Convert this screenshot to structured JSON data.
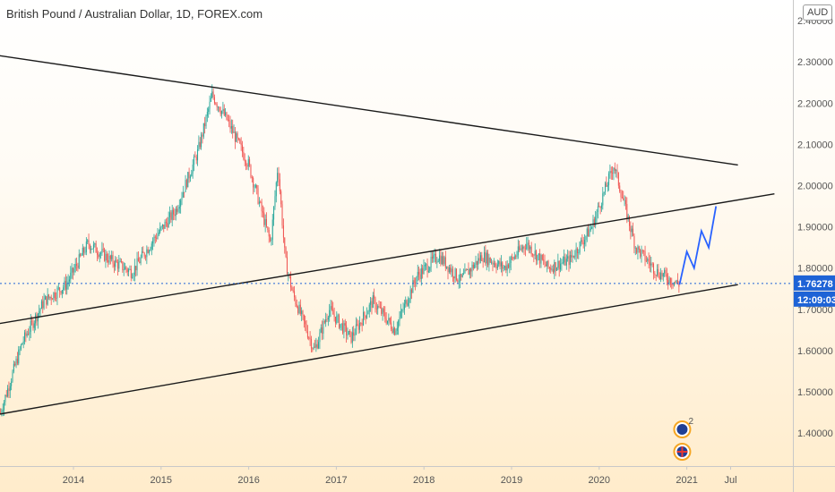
{
  "header": {
    "title": "British Pound / Australian Dollar, 1D, FOREX.com",
    "currency": "AUD"
  },
  "colors": {
    "up": "#26a69a",
    "down": "#ef5350",
    "trendline": "#1a1a1a",
    "projection": "#2962ff",
    "last_price": "#1e63d6"
  },
  "chart_data": {
    "type": "candlestick",
    "x_axis": {
      "ticks": [
        "2014",
        "2015",
        "2016",
        "2017",
        "2018",
        "2019",
        "2020",
        "2021",
        "Jul"
      ]
    },
    "y_axis": {
      "ticks": [
        "2.40000",
        "2.30000",
        "2.20000",
        "2.10000",
        "2.00000",
        "1.90000",
        "1.80000",
        "1.70000",
        "1.60000",
        "1.50000",
        "1.40000"
      ],
      "range": [
        1.32,
        2.45
      ]
    },
    "last_price": "1.76278",
    "countdown": "12:09:03",
    "price_path": [
      [
        "2013-03",
        1.45
      ],
      [
        "2013-06",
        1.62
      ],
      [
        "2013-09",
        1.72
      ],
      [
        "2013-12",
        1.76
      ],
      [
        "2014-03",
        1.86
      ],
      [
        "2014-06",
        1.82
      ],
      [
        "2014-09",
        1.79
      ],
      [
        "2014-12",
        1.87
      ],
      [
        "2015-03",
        1.94
      ],
      [
        "2015-06",
        2.08
      ],
      [
        "2015-08",
        2.22
      ],
      [
        "2015-10",
        2.16
      ],
      [
        "2016-01",
        2.05
      ],
      [
        "2016-04",
        1.86
      ],
      [
        "2016-05",
        2.05
      ],
      [
        "2016-06",
        1.82
      ],
      [
        "2016-07",
        1.74
      ],
      [
        "2016-10",
        1.6
      ],
      [
        "2016-12",
        1.7
      ],
      [
        "2017-03",
        1.63
      ],
      [
        "2017-06",
        1.72
      ],
      [
        "2017-09",
        1.65
      ],
      [
        "2017-12",
        1.78
      ],
      [
        "2018-03",
        1.83
      ],
      [
        "2018-06",
        1.77
      ],
      [
        "2018-09",
        1.83
      ],
      [
        "2018-12",
        1.8
      ],
      [
        "2019-03",
        1.86
      ],
      [
        "2019-06",
        1.8
      ],
      [
        "2019-09",
        1.82
      ],
      [
        "2019-12",
        1.9
      ],
      [
        "2020-03",
        2.05
      ],
      [
        "2020-06",
        1.85
      ],
      [
        "2020-09",
        1.79
      ],
      [
        "2020-12",
        1.76
      ]
    ],
    "trendlines": [
      {
        "name": "upper-resistance",
        "from": [
          "2013-01",
          2.32
        ],
        "to": [
          "2021-08",
          2.05
        ]
      },
      {
        "name": "middle-channel",
        "from": [
          "2013-01",
          1.66
        ],
        "to": [
          "2022-01",
          1.98
        ]
      },
      {
        "name": "lower-support",
        "from": [
          "2013-01",
          1.44
        ],
        "to": [
          "2021-08",
          1.76
        ]
      }
    ],
    "projection": [
      [
        "2020-12",
        1.76
      ],
      [
        "2021-01",
        1.84
      ],
      [
        "2021-02",
        1.8
      ],
      [
        "2021-03",
        1.89
      ],
      [
        "2021-04",
        1.85
      ],
      [
        "2021-05",
        1.95
      ]
    ],
    "events": [
      {
        "name": "aud-event",
        "count": "2"
      },
      {
        "name": "gbp-event"
      }
    ]
  }
}
